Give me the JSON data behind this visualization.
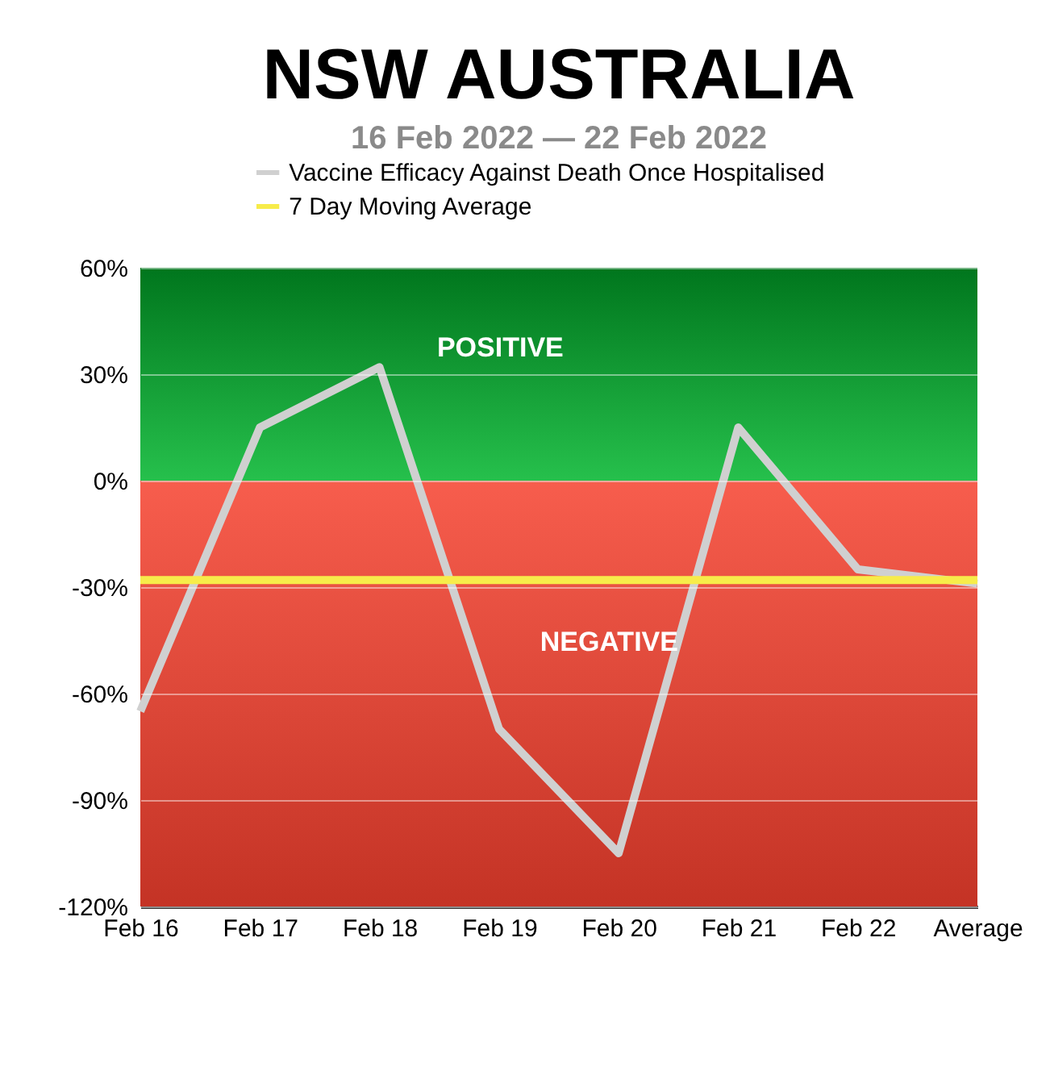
{
  "chart_data": {
    "type": "line",
    "title": "NSW AUSTRALIA",
    "subtitle": "16 Feb 2022 — 22 Feb 2022",
    "categories": [
      "Feb 16",
      "Feb 17",
      "Feb 18",
      "Feb 19",
      "Feb 20",
      "Feb 21",
      "Feb 22",
      "Average"
    ],
    "series": [
      {
        "name": "Vaccine Efficacy Against Death Once Hospitalised",
        "color": "#d0d0d0",
        "values": [
          -65,
          15,
          32,
          -70,
          -105,
          15,
          -25,
          -29
        ]
      },
      {
        "name": "7 Day Moving Average",
        "color": "#f7ec4a",
        "values": [
          -28,
          -28,
          -28,
          -28,
          -28,
          -28,
          -28,
          -28
        ]
      }
    ],
    "ylim": [
      -120,
      60
    ],
    "yticks": [
      {
        "value": -120,
        "label": "-120%"
      },
      {
        "value": -90,
        "label": "-90%"
      },
      {
        "value": -60,
        "label": "-60%"
      },
      {
        "value": -30,
        "label": "-30%"
      },
      {
        "value": 0,
        "label": "0%"
      },
      {
        "value": 30,
        "label": "30%"
      },
      {
        "value": 60,
        "label": "60%"
      }
    ],
    "bands": [
      {
        "axis": "y",
        "from": 0,
        "to": 60,
        "label": "POSITIVE",
        "color": "#00b52c"
      },
      {
        "axis": "y",
        "from": -120,
        "to": 0,
        "label": "NEGATIVE",
        "color": "#f5402e"
      }
    ],
    "grid": "y",
    "legend": "top",
    "line_style": "solid",
    "marker": "none"
  }
}
